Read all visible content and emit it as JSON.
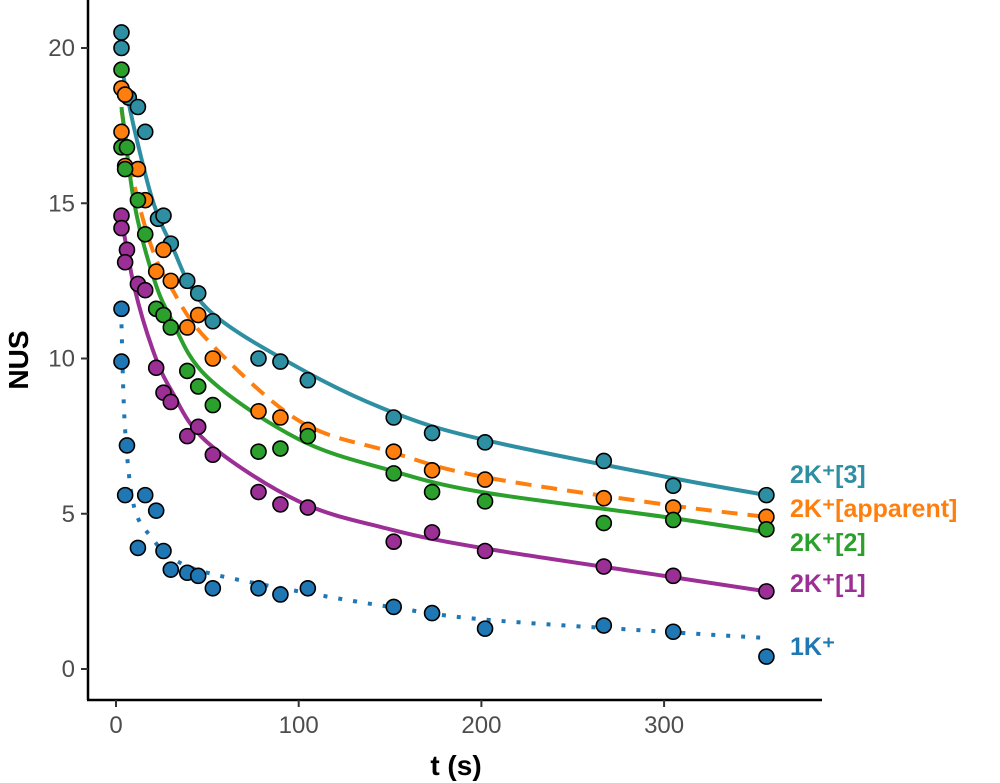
{
  "chart_data": {
    "type": "scatter",
    "title": "",
    "xlabel": "t (s)",
    "ylabel": "NUS",
    "xlim": [
      -15,
      385
    ],
    "ylim": [
      -1,
      21.5
    ],
    "xticks": [
      0,
      100,
      200,
      300
    ],
    "yticks": [
      0,
      5,
      10,
      15,
      20
    ],
    "grid": false,
    "legend": "direct labels at right end of curves",
    "series": [
      {
        "name": "2K⁺[3]",
        "color": "#2e8fa3",
        "line": "solid",
        "points": [
          [
            3,
            20.5
          ],
          [
            3,
            20.0
          ],
          [
            5,
            18.5
          ],
          [
            7,
            18.4
          ],
          [
            12,
            18.1
          ],
          [
            16,
            17.3
          ],
          [
            23,
            14.5
          ],
          [
            26,
            14.6
          ],
          [
            30,
            13.7
          ],
          [
            39,
            12.5
          ],
          [
            45,
            12.1
          ],
          [
            53,
            11.2
          ],
          [
            78,
            10.0
          ],
          [
            90,
            9.9
          ],
          [
            105,
            9.3
          ],
          [
            152,
            8.1
          ],
          [
            173,
            7.6
          ],
          [
            202,
            7.3
          ],
          [
            267,
            6.7
          ],
          [
            305,
            5.9
          ],
          [
            356,
            5.6
          ]
        ],
        "fit": [
          [
            4,
            19.1
          ],
          [
            10,
            17.4
          ],
          [
            20,
            15.1
          ],
          [
            30,
            13.7
          ],
          [
            50,
            11.6
          ],
          [
            100,
            9.7
          ],
          [
            150,
            8.3
          ],
          [
            200,
            7.4
          ],
          [
            300,
            6.2
          ],
          [
            356,
            5.6
          ]
        ]
      },
      {
        "name": "2K⁺[apparent]",
        "color": "#ff7f0e",
        "line": "dashed",
        "points": [
          [
            3,
            18.7
          ],
          [
            5,
            18.5
          ],
          [
            3,
            17.3
          ],
          [
            5,
            16.2
          ],
          [
            12,
            16.1
          ],
          [
            16,
            15.1
          ],
          [
            22,
            12.8
          ],
          [
            26,
            13.5
          ],
          [
            30,
            12.5
          ],
          [
            39,
            11.0
          ],
          [
            45,
            11.4
          ],
          [
            53,
            10.0
          ],
          [
            78,
            8.3
          ],
          [
            90,
            8.1
          ],
          [
            105,
            7.7
          ],
          [
            152,
            7.0
          ],
          [
            173,
            6.4
          ],
          [
            202,
            6.1
          ],
          [
            267,
            5.5
          ],
          [
            305,
            5.2
          ],
          [
            356,
            4.9
          ]
        ],
        "fit": [
          [
            3,
            18.0
          ],
          [
            10,
            15.6
          ],
          [
            20,
            13.5
          ],
          [
            30,
            12.3
          ],
          [
            50,
            10.6
          ],
          [
            100,
            8.0
          ],
          [
            150,
            7.0
          ],
          [
            200,
            6.2
          ],
          [
            300,
            5.3
          ],
          [
            356,
            4.9
          ]
        ]
      },
      {
        "name": "2K⁺[2]",
        "color": "#2ca02c",
        "line": "solid",
        "points": [
          [
            3,
            19.3
          ],
          [
            3,
            16.8
          ],
          [
            6,
            16.8
          ],
          [
            5,
            16.1
          ],
          [
            12,
            15.1
          ],
          [
            16,
            14.0
          ],
          [
            22,
            11.6
          ],
          [
            26,
            11.4
          ],
          [
            30,
            11.0
          ],
          [
            39,
            9.6
          ],
          [
            45,
            9.1
          ],
          [
            53,
            8.5
          ],
          [
            78,
            7.0
          ],
          [
            90,
            7.1
          ],
          [
            105,
            7.5
          ],
          [
            152,
            6.3
          ],
          [
            173,
            5.7
          ],
          [
            202,
            5.4
          ],
          [
            267,
            4.7
          ],
          [
            305,
            4.8
          ],
          [
            356,
            4.5
          ]
        ],
        "fit": [
          [
            3,
            18.1
          ],
          [
            10,
            15.0
          ],
          [
            20,
            12.7
          ],
          [
            30,
            11.3
          ],
          [
            50,
            9.4
          ],
          [
            100,
            7.4
          ],
          [
            150,
            6.4
          ],
          [
            200,
            5.7
          ],
          [
            300,
            4.9
          ],
          [
            356,
            4.4
          ]
        ]
      },
      {
        "name": "2K⁺[1]",
        "color": "#9b2f96",
        "line": "solid",
        "points": [
          [
            3,
            14.6
          ],
          [
            3,
            14.2
          ],
          [
            6,
            13.5
          ],
          [
            5,
            13.1
          ],
          [
            12,
            12.4
          ],
          [
            16,
            12.2
          ],
          [
            22,
            9.7
          ],
          [
            26,
            8.9
          ],
          [
            30,
            8.6
          ],
          [
            39,
            7.5
          ],
          [
            45,
            7.8
          ],
          [
            53,
            6.9
          ],
          [
            78,
            5.7
          ],
          [
            90,
            5.3
          ],
          [
            105,
            5.2
          ],
          [
            152,
            4.1
          ],
          [
            173,
            4.4
          ],
          [
            202,
            3.8
          ],
          [
            267,
            3.3
          ],
          [
            305,
            3.0
          ],
          [
            356,
            2.5
          ]
        ],
        "fit": [
          [
            3,
            14.5
          ],
          [
            10,
            12.3
          ],
          [
            20,
            10.3
          ],
          [
            30,
            9.0
          ],
          [
            50,
            7.3
          ],
          [
            100,
            5.4
          ],
          [
            150,
            4.5
          ],
          [
            200,
            3.9
          ],
          [
            300,
            3.0
          ],
          [
            356,
            2.5
          ]
        ]
      },
      {
        "name": "1K⁺",
        "color": "#1f77b4",
        "line": "dotted",
        "points": [
          [
            3,
            11.6
          ],
          [
            3,
            9.9
          ],
          [
            6,
            7.2
          ],
          [
            5,
            5.6
          ],
          [
            16,
            5.6
          ],
          [
            22,
            5.1
          ],
          [
            12,
            3.9
          ],
          [
            26,
            3.8
          ],
          [
            30,
            3.2
          ],
          [
            39,
            3.1
          ],
          [
            45,
            3.0
          ],
          [
            53,
            2.6
          ],
          [
            78,
            2.6
          ],
          [
            90,
            2.4
          ],
          [
            105,
            2.6
          ],
          [
            152,
            2.0
          ],
          [
            173,
            1.8
          ],
          [
            202,
            1.3
          ],
          [
            267,
            1.4
          ],
          [
            305,
            1.2
          ],
          [
            356,
            0.4
          ]
        ],
        "fit": [
          [
            3,
            11.1
          ],
          [
            5,
            7.7
          ],
          [
            10,
            5.2
          ],
          [
            20,
            4.2
          ],
          [
            30,
            3.6
          ],
          [
            50,
            3.1
          ],
          [
            100,
            2.5
          ],
          [
            150,
            2.0
          ],
          [
            200,
            1.6
          ],
          [
            300,
            1.2
          ],
          [
            356,
            1.0
          ]
        ]
      }
    ]
  }
}
